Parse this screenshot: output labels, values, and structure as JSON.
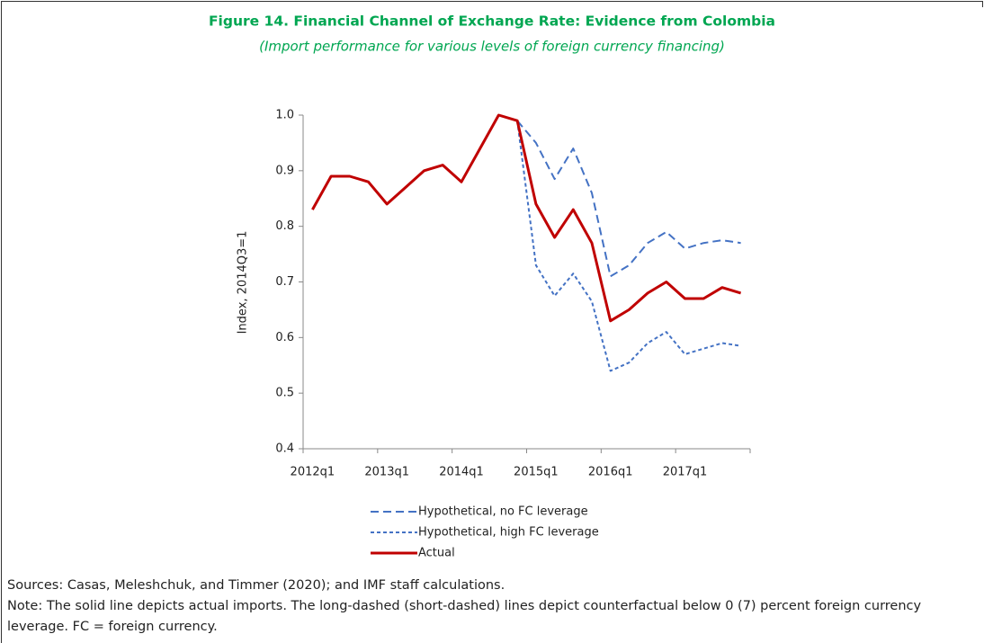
{
  "chart_data": {
    "type": "line",
    "title": "Figure 14. Financial Channel of Exchange Rate: Evidence from Colombia",
    "subtitle": "(Import performance for various levels of foreign currency financing)",
    "y_label": "Index, 2014Q3=1",
    "categories": [
      "2012q1",
      null,
      null,
      null,
      "2013q1",
      null,
      null,
      null,
      "2014q1",
      null,
      null,
      null,
      "2015q1",
      null,
      null,
      null,
      "2016q1",
      null,
      null,
      null,
      "2017q1",
      null,
      null,
      null
    ],
    "series": [
      {
        "name": "Hypothetical, no FC leverage",
        "color": "#4472c4",
        "dash": "long",
        "values": [
          null,
          null,
          null,
          null,
          null,
          null,
          null,
          null,
          null,
          null,
          null,
          0.99,
          0.95,
          0.885,
          0.94,
          0.86,
          0.71,
          0.73,
          0.77,
          0.79,
          0.76,
          0.77,
          0.775,
          0.77
        ]
      },
      {
        "name": "Hypothetical, high FC leverage",
        "color": "#4472c4",
        "dash": "short",
        "values": [
          null,
          null,
          null,
          null,
          null,
          null,
          null,
          null,
          null,
          null,
          null,
          0.99,
          0.73,
          0.675,
          0.715,
          0.665,
          0.54,
          0.555,
          0.59,
          0.61,
          0.57,
          0.58,
          0.59,
          0.585
        ]
      },
      {
        "name": "Actual",
        "color": "#c00000",
        "dash": "solid",
        "values": [
          0.83,
          0.89,
          0.89,
          0.88,
          0.84,
          0.87,
          0.9,
          0.91,
          0.88,
          0.94,
          1.0,
          0.99,
          0.84,
          0.78,
          0.83,
          0.77,
          0.63,
          0.65,
          0.68,
          0.7,
          0.67,
          0.67,
          0.69,
          0.68
        ]
      }
    ],
    "ylim": [
      0.4,
      1.0
    ],
    "yticks": [
      {
        "value": 0.4,
        "label": "0.4"
      },
      0.5,
      0.6,
      0.7,
      0.8,
      0.9,
      {
        "value": 1.0,
        "label": "1.0"
      }
    ],
    "legend": "bottom",
    "sources": "Sources: Casas, Meleshchuk, and Timmer (2020); and IMF staff calculations.",
    "note": "Note: The solid line depicts actual imports. The long-dashed (short-dashed) lines depict counterfactual below 0 (7) percent foreign currency leverage. FC = foreign currency."
  }
}
